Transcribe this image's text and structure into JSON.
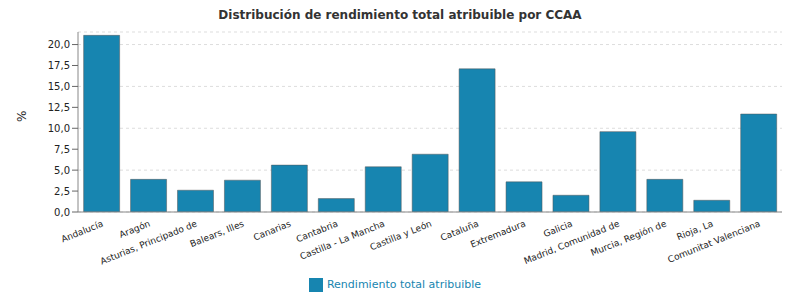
{
  "chart_data": {
    "type": "bar",
    "title": "Distribución de rendimiento total atribuible por CCAA",
    "y_label": "%",
    "categories": [
      "Andalucía",
      "Aragón",
      "Asturias, Principado de",
      "Balears, Illes",
      "Canarias",
      "Cantabria",
      "Castilla - La Mancha",
      "Castilla y León",
      "Cataluña",
      "Extremadura",
      "Galicia",
      "Madrid, Comunidad de",
      "Murcia, Región de",
      "Rioja, La",
      "Comunitat Valenciana"
    ],
    "series": [
      {
        "name": "Rendimiento total atribuible",
        "color": "#1785b0",
        "values": [
          21.1,
          3.9,
          2.6,
          3.8,
          5.6,
          1.6,
          5.4,
          6.9,
          17.1,
          3.6,
          2.0,
          9.6,
          3.9,
          1.4,
          11.7
        ]
      }
    ],
    "ylim": [
      0,
      21.5
    ],
    "yticks": [
      {
        "value": 0,
        "label": "0,0"
      },
      {
        "value": 2.5,
        "label": "2,5"
      },
      {
        "value": 5,
        "label": "5,0"
      },
      {
        "value": 7.5,
        "label": "7,5"
      },
      {
        "value": 10,
        "label": "10,0"
      },
      {
        "value": 12.5,
        "label": "12,5"
      },
      {
        "value": 15,
        "label": "15,0"
      },
      {
        "value": 17.5,
        "label": "17,5"
      },
      {
        "value": 20,
        "label": "20,0"
      }
    ],
    "grid": true,
    "legend": "bottom"
  }
}
